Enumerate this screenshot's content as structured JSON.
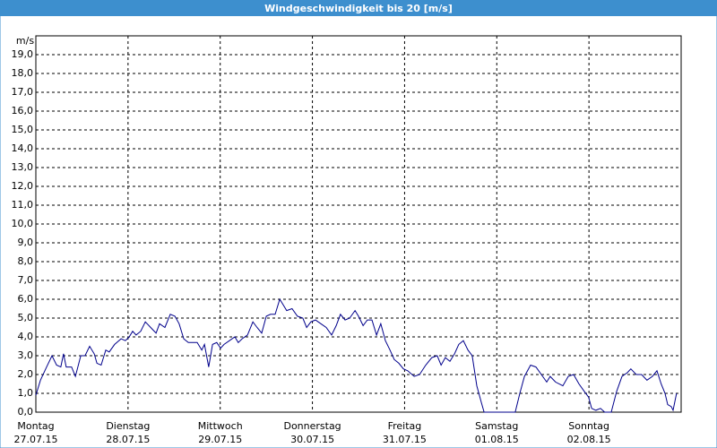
{
  "chart_data": {
    "type": "line",
    "title": "Windgeschwindigkeit bis 20 [m/s]",
    "y_unit": "m/s",
    "color": "#00008b",
    "grid": true,
    "xlim": [
      0,
      168
    ],
    "ylim": [
      0,
      20
    ],
    "xticks": [
      {
        "value": 0,
        "label": [
          "Montag",
          "27.07.15"
        ]
      },
      {
        "value": 24,
        "label": [
          "Dienstag",
          "28.07.15"
        ]
      },
      {
        "value": 48,
        "label": [
          "Mittwoch",
          "29.07.15"
        ]
      },
      {
        "value": 72,
        "label": [
          "Donnerstag",
          "30.07.15"
        ]
      },
      {
        "value": 96,
        "label": [
          "Freitag",
          "31.07.15"
        ]
      },
      {
        "value": 120,
        "label": [
          "Samstag",
          "01.08.15"
        ]
      },
      {
        "value": 144,
        "label": [
          "Sonntag",
          "02.08.15"
        ]
      }
    ],
    "yticks": [
      {
        "value": 0,
        "label": "0,0"
      },
      {
        "value": 1,
        "label": "1,0"
      },
      {
        "value": 2,
        "label": "2,0"
      },
      {
        "value": 3,
        "label": "3,0"
      },
      {
        "value": 4,
        "label": "4,0"
      },
      {
        "value": 5,
        "label": "5,0"
      },
      {
        "value": 6,
        "label": "6,0"
      },
      {
        "value": 7,
        "label": "7,0"
      },
      {
        "value": 8,
        "label": "8,0"
      },
      {
        "value": 9,
        "label": "9,0"
      },
      {
        "value": 10,
        "label": "10,0"
      },
      {
        "value": 11,
        "label": "11,0"
      },
      {
        "value": 12,
        "label": "12,0"
      },
      {
        "value": 13,
        "label": "13,0"
      },
      {
        "value": 14,
        "label": "14,0"
      },
      {
        "value": 15,
        "label": "15,0"
      },
      {
        "value": 16,
        "label": "16,0"
      },
      {
        "value": 17,
        "label": "17,0"
      },
      {
        "value": 18,
        "label": "18,0"
      },
      {
        "value": 19,
        "label": "19,0"
      }
    ],
    "x": [
      0,
      1.2,
      2.8,
      4.2,
      5.4,
      6.5,
      7.2,
      7.9,
      9.3,
      10.3,
      11.7,
      12.8,
      14.0,
      15.2,
      15.9,
      17.0,
      18.2,
      19.1,
      20.5,
      22.2,
      23.3,
      24.3,
      25.2,
      26.1,
      27.3,
      28.5,
      29.9,
      31.3,
      32.2,
      33.6,
      35.0,
      36.2,
      37.3,
      38.5,
      39.7,
      42.0,
      43.2,
      43.9,
      45.0,
      46.0,
      47.1,
      48.1,
      49.0,
      50.4,
      51.8,
      52.7,
      53.7,
      55.1,
      56.5,
      57.6,
      58.8,
      60.0,
      61.1,
      62.3,
      63.5,
      64.4,
      65.3,
      66.7,
      68.1,
      69.5,
      70.5,
      71.6,
      72.8,
      74.2,
      75.6,
      77.0,
      78.2,
      79.3,
      80.5,
      81.7,
      83.1,
      84.0,
      85.2,
      86.3,
      87.5,
      88.7,
      89.8,
      91.0,
      92.2,
      93.3,
      94.5,
      95.7,
      96.8,
      98.5,
      99.9,
      101.5,
      103.1,
      104.5,
      105.5,
      106.6,
      107.8,
      109.0,
      110.1,
      111.3,
      112.5,
      113.6,
      114.8,
      116.0,
      116.7,
      124.8,
      126.0,
      127.2,
      128.8,
      130.2,
      131.6,
      133.0,
      133.9,
      135.3,
      137.2,
      138.6,
      140.0,
      141.4,
      142.8,
      143.9,
      144.7,
      145.8,
      147.0,
      148.1,
      149.8,
      151.2,
      152.6,
      154.0,
      154.9,
      156.3,
      157.7,
      159.1,
      160.5,
      161.7,
      162.8,
      163.8,
      164.5,
      165.4,
      165.9,
      166.8
    ],
    "values": [
      0.9,
      1.7,
      2.4,
      3.0,
      2.5,
      2.4,
      3.1,
      2.4,
      2.4,
      1.9,
      3.0,
      3.0,
      3.5,
      3.1,
      2.6,
      2.5,
      3.3,
      3.2,
      3.6,
      3.9,
      3.8,
      4.0,
      4.3,
      4.1,
      4.3,
      4.8,
      4.5,
      4.2,
      4.7,
      4.5,
      5.2,
      5.1,
      4.7,
      3.9,
      3.7,
      3.7,
      3.3,
      3.6,
      2.4,
      3.6,
      3.7,
      3.4,
      3.6,
      3.8,
      4.0,
      3.7,
      3.9,
      4.1,
      4.8,
      4.5,
      4.2,
      5.1,
      5.2,
      5.2,
      6.0,
      5.7,
      5.4,
      5.5,
      5.1,
      5.0,
      4.5,
      4.8,
      4.9,
      4.7,
      4.5,
      4.1,
      4.6,
      5.2,
      4.9,
      5.0,
      5.4,
      5.1,
      4.6,
      4.9,
      4.9,
      4.1,
      4.7,
      3.8,
      3.3,
      2.8,
      2.6,
      2.3,
      2.2,
      1.9,
      2.0,
      2.5,
      2.9,
      3.0,
      2.5,
      2.9,
      2.7,
      3.1,
      3.6,
      3.8,
      3.3,
      3.0,
      1.4,
      0.5,
      0,
      0,
      1.0,
      1.9,
      2.5,
      2.4,
      2.0,
      1.6,
      1.9,
      1.6,
      1.4,
      1.9,
      2.0,
      1.5,
      1.1,
      0.8,
      0.2,
      0.1,
      0.2,
      0,
      0,
      1.1,
      1.9,
      2.1,
      2.3,
      2.0,
      2.0,
      1.7,
      1.9,
      2.2,
      1.5,
      1.0,
      0.4,
      0.3,
      0.1,
      1.0
    ]
  }
}
